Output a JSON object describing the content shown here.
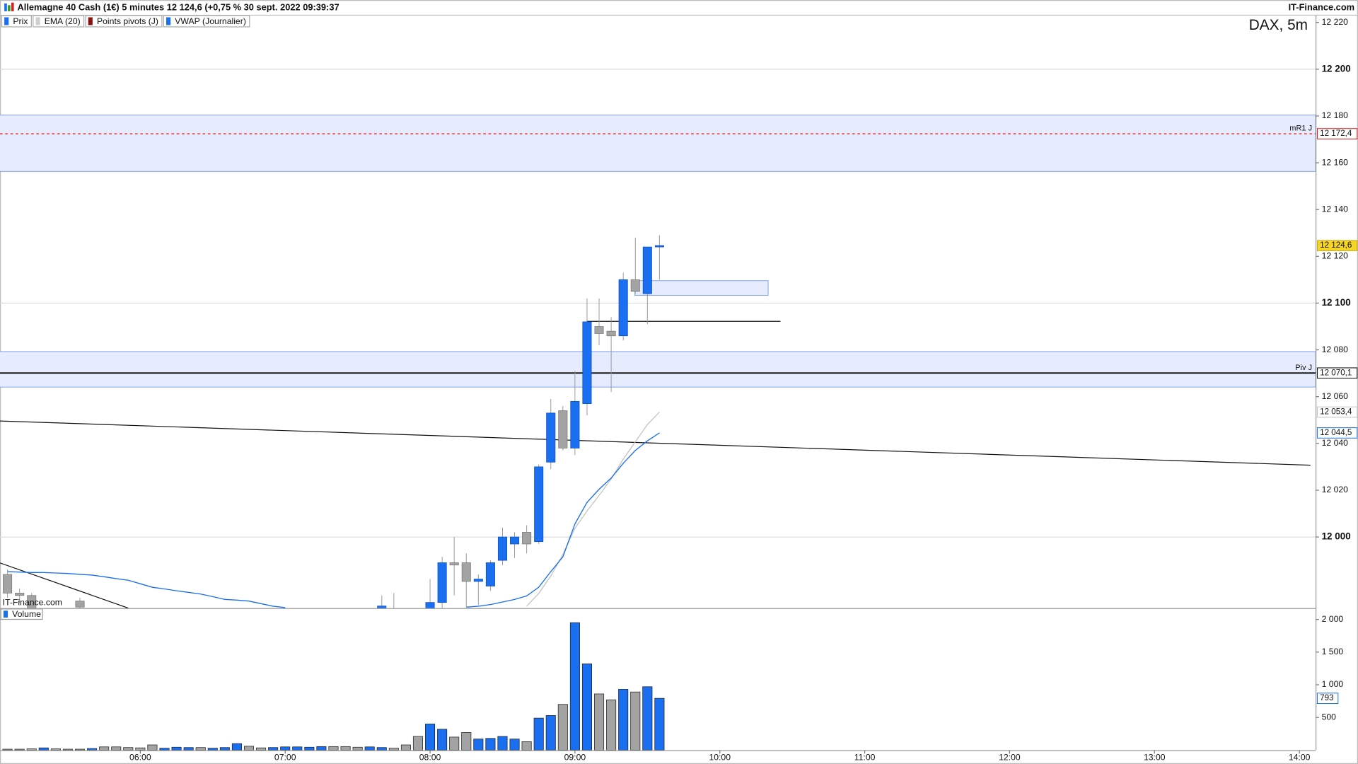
{
  "header": {
    "title": "Allemagne 40 Cash (1€) 5 minutes 12 124,6 (+0,75 % 30 sept. 2022 09:39:37",
    "brand": "IT-Finance.com"
  },
  "chart_data": {
    "type": "candlestick",
    "watermark": "DAX, 5m",
    "source": "IT-Finance.com",
    "legend": [
      {
        "name": "Prix",
        "color": "#1a6ef0"
      },
      {
        "name": "EMA (20)",
        "color": "#cfcfcf"
      },
      {
        "name": "Points pivots (J)",
        "color": "#8b1010"
      },
      {
        "name": "VWAP (Journalier)",
        "color": "#1a6ef0"
      }
    ],
    "up_color": "#1a6ef0",
    "down_color": "#a3a3a3",
    "x": [
      305,
      310,
      315,
      320,
      325,
      330,
      335,
      340,
      345,
      350,
      355,
      360,
      365,
      370,
      375,
      380,
      385,
      390,
      395,
      400,
      405,
      410,
      415,
      420,
      425,
      430,
      435,
      440,
      445,
      450,
      455,
      460,
      465,
      470,
      475,
      480,
      485,
      490,
      495,
      500,
      505,
      510,
      515,
      520,
      525,
      530,
      535,
      540,
      545,
      550,
      555,
      560,
      565,
      570,
      575
    ],
    "open": [
      11984,
      11976,
      11975,
      null,
      null,
      null,
      11972.6,
      null,
      null,
      null,
      null,
      null,
      null,
      null,
      null,
      null,
      null,
      null,
      null,
      null,
      null,
      null,
      null,
      null,
      null,
      null,
      null,
      null,
      null,
      null,
      null,
      11969,
      11967,
      null,
      null,
      11969,
      11972,
      11989,
      11989,
      11981,
      11979,
      11990,
      11997,
      12002,
      11998,
      12032,
      12054,
      12038,
      12057,
      12090,
      12088,
      12086,
      12110,
      12104,
      12124
    ],
    "high": [
      11986,
      11978,
      11976,
      null,
      null,
      null,
      11974,
      null,
      null,
      null,
      null,
      null,
      null,
      null,
      null,
      null,
      null,
      null,
      null,
      null,
      null,
      null,
      null,
      null,
      null,
      null,
      null,
      null,
      null,
      null,
      null,
      11975,
      11976,
      null,
      null,
      11982,
      11991.5,
      12000,
      11993,
      11984,
      11990,
      12004,
      12002,
      12005,
      12031,
      12059,
      12056,
      12071,
      12102,
      12102,
      12094,
      12113,
      12128,
      12124,
      12129
    ],
    "low": [
      11974,
      11972,
      11968,
      null,
      null,
      null,
      11968,
      null,
      null,
      null,
      null,
      null,
      null,
      null,
      null,
      null,
      null,
      null,
      null,
      null,
      null,
      null,
      null,
      null,
      null,
      null,
      null,
      null,
      null,
      null,
      null,
      11965,
      11963,
      null,
      null,
      11966,
      11969,
      11975,
      11970,
      11971,
      11977,
      11988,
      11991,
      11993,
      11997,
      12029,
      12037,
      12035,
      12052,
      12082,
      12062,
      12084,
      12104,
      12091,
      12110
    ],
    "close": [
      11976,
      11975,
      11969,
      null,
      null,
      null,
      11970,
      null,
      null,
      null,
      null,
      null,
      null,
      null,
      null,
      null,
      null,
      null,
      null,
      null,
      null,
      null,
      null,
      null,
      null,
      null,
      null,
      null,
      null,
      null,
      null,
      11970.5,
      11968,
      null,
      null,
      11972,
      11989,
      11988,
      11981,
      11982,
      11989,
      12000,
      12000,
      11997,
      12030,
      12053,
      12038,
      12058,
      12092,
      12087,
      12086,
      12110,
      12105,
      12124,
      12124.6
    ],
    "last_price": {
      "value": 12124.6,
      "label": "12 124,6"
    },
    "series": [
      {
        "color": "#c4c4c4",
        "values": [
          null,
          null,
          null,
          null,
          null,
          null,
          null,
          null,
          null,
          null,
          null,
          null,
          null,
          null,
          null,
          null,
          null,
          null,
          null,
          null,
          null,
          null,
          null,
          null,
          null,
          null,
          null,
          null,
          null,
          null,
          null,
          null,
          null,
          null,
          null,
          null,
          null,
          null,
          null,
          null,
          null,
          null,
          null,
          11970.4,
          11975.9,
          11983.3,
          11992.6,
          12003.7,
          12011.1,
          12017.8,
          12024.8,
          12033.3,
          12040.7,
          12048.1,
          12053.4
        ],
        "last_label": {
          "value": 12053.4,
          "label": "12 053,4"
        }
      },
      {
        "color": "#1a6ef0",
        "values": [
          11985.2,
          11985.0,
          11984.8,
          11984.8,
          11984.6,
          11984.4,
          11984.0,
          11983.7,
          11983.0,
          11982.2,
          11981.5,
          11980.0,
          11978.5,
          11977.8,
          11977.0,
          11976.3,
          11975.6,
          11974.5,
          11973.3,
          11973.0,
          11972.6,
          11971.5,
          11970.4,
          11969.8,
          null,
          null,
          null,
          null,
          null,
          null,
          null,
          null,
          null,
          null,
          null,
          null,
          null,
          null,
          11970.0,
          11970.4,
          11971.1,
          11972.2,
          11973.3,
          11974.8,
          11978.5,
          11985.2,
          11991.5,
          12005.6,
          12014.8,
          12020.4,
          12025.2,
          12031.5,
          12037.0,
          12041.1,
          12044.5
        ],
        "last_label": {
          "value": 12044.5,
          "label": "12 044,5"
        }
      }
    ],
    "levels": [
      {
        "name": "mR1 J",
        "value": 12172.4,
        "label": "12 172,4",
        "color": "#e01010",
        "dashed": true
      },
      {
        "name": "Piv J",
        "value": 12070.1,
        "label": "12 070,1",
        "color": "#000000",
        "dashed": false
      }
    ],
    "zones": [
      {
        "y": [
          12156.3,
          12180.4
        ]
      },
      {
        "y": [
          12064.1,
          12079.3
        ]
      },
      {
        "y": [
          12103.3,
          12109.6
        ],
        "x": [
          564.8,
          620.0
        ]
      }
    ],
    "trendlines": [
      {
        "x": [
          301.9,
          844.6
        ],
        "y": [
          12049.6,
          12030.7
        ]
      },
      {
        "x": [
          301.9,
          355.0
        ],
        "y": [
          11988.9,
          11969.6
        ]
      },
      {
        "x": [
          545.1,
          625.1
        ],
        "y": [
          12092.2,
          12092.2
        ]
      }
    ],
    "xlim": [
      301.9,
      846.7
    ],
    "ylim": [
      11969.6,
      12223.3
    ],
    "grid_every": 100,
    "xticks": [
      {
        "value": 360,
        "label": "06:00"
      },
      {
        "value": 420,
        "label": "07:00"
      },
      {
        "value": 480,
        "label": "08:00"
      },
      {
        "value": 540,
        "label": "09:00"
      },
      {
        "value": 600,
        "label": "10:00"
      },
      {
        "value": 660,
        "label": "11:00"
      },
      {
        "value": 720,
        "label": "12:00"
      },
      {
        "value": 780,
        "label": "13:00"
      },
      {
        "value": 840,
        "label": "14:00"
      }
    ],
    "yticks": [
      {
        "value": 12000,
        "label": "12 000"
      },
      {
        "value": 12020,
        "label": "12 020"
      },
      {
        "value": 12040,
        "label": "12 040"
      },
      {
        "value": 12060,
        "label": "12 060"
      },
      {
        "value": 12080,
        "label": "12 080"
      },
      {
        "value": 12100,
        "label": "12 100"
      },
      {
        "value": 12120,
        "label": "12 120"
      },
      {
        "value": 12140,
        "label": "12 140"
      },
      {
        "value": 12160,
        "label": "12 160"
      },
      {
        "value": 12180,
        "label": "12 180"
      },
      {
        "value": 12200,
        "label": "12 200"
      },
      {
        "value": 12220,
        "label": "12 220"
      }
    ],
    "volume": {
      "title": "Volume",
      "values": [
        15,
        15,
        20,
        35,
        20,
        15,
        15,
        25,
        50,
        50,
        40,
        35,
        80,
        30,
        45,
        40,
        40,
        30,
        40,
        100,
        60,
        35,
        40,
        50,
        50,
        45,
        55,
        55,
        55,
        45,
        50,
        40,
        30,
        80,
        210,
        400,
        320,
        200,
        270,
        170,
        180,
        210,
        170,
        130,
        490,
        530,
        700,
        1950,
        1320,
        860,
        770,
        930,
        890,
        970,
        793
      ],
      "colors": [
        "#a3a3a3",
        "#a3a3a3",
        "#a3a3a3",
        "#1a6ef0",
        "#a3a3a3",
        "#a3a3a3",
        "#a3a3a3",
        "#1a6ef0",
        "#a3a3a3",
        "#a3a3a3",
        "#a3a3a3",
        "#a3a3a3",
        "#a3a3a3",
        "#1a6ef0",
        "#1a6ef0",
        "#1a6ef0",
        "#a3a3a3",
        "#1a6ef0",
        "#1a6ef0",
        "#1a6ef0",
        "#a3a3a3",
        "#a3a3a3",
        "#1a6ef0",
        "#1a6ef0",
        "#1a6ef0",
        "#1a6ef0",
        "#1a6ef0",
        "#a3a3a3",
        "#a3a3a3",
        "#a3a3a3",
        "#1a6ef0",
        "#1a6ef0",
        "#a3a3a3",
        "#a3a3a3",
        "#a3a3a3",
        "#1a6ef0",
        "#1a6ef0",
        "#a3a3a3",
        "#a3a3a3",
        "#1a6ef0",
        "#1a6ef0",
        "#1a6ef0",
        "#1a6ef0",
        "#a3a3a3",
        "#1a6ef0",
        "#1a6ef0",
        "#a3a3a3",
        "#1a6ef0",
        "#1a6ef0",
        "#a3a3a3",
        "#a3a3a3",
        "#1a6ef0",
        "#a3a3a3",
        "#1a6ef0",
        "#1a6ef0"
      ],
      "ylim": [
        0,
        2160
      ],
      "yticks": [
        500,
        {
          "value": 1000,
          "label": "1 000"
        },
        {
          "value": 1500,
          "label": "1 500"
        },
        {
          "value": 2000,
          "label": "2 000"
        }
      ]
    }
  }
}
